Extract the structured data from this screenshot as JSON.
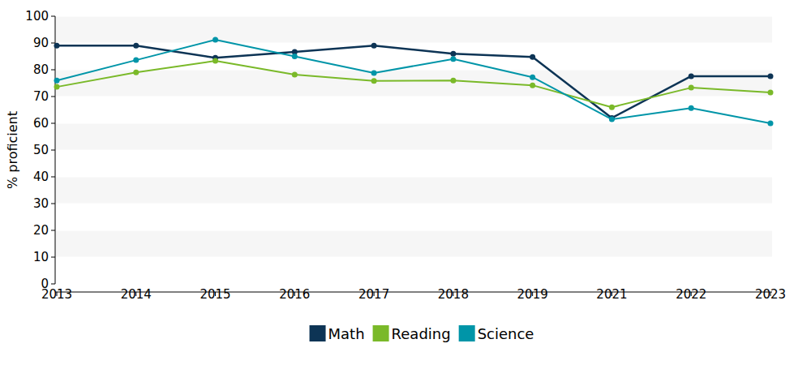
{
  "chart_data": {
    "type": "line",
    "y_label": "% proficient",
    "categories": [
      "2013",
      "2014",
      "2015",
      "2016",
      "2017",
      "2018",
      "2019",
      "2021",
      "2022",
      "2023"
    ],
    "series": [
      {
        "name": "Math",
        "color": "#0d3455",
        "values": [
          89,
          89,
          84.5,
          86.7,
          89,
          86,
          84.8,
          62,
          77.6,
          77.6
        ]
      },
      {
        "name": "Reading",
        "color": "#7ab929",
        "values": [
          73.6,
          79,
          83.3,
          78.2,
          75.8,
          76,
          74.2,
          66,
          73.3,
          71.5
        ]
      },
      {
        "name": "Science",
        "color": "#0095a8",
        "values": [
          76,
          83.6,
          91.2,
          85,
          78.8,
          84,
          77.2,
          61.5,
          65.7,
          60
        ]
      }
    ],
    "ylim": [
      0,
      100
    ],
    "yticks": [
      0,
      10,
      20,
      30,
      40,
      50,
      60,
      70,
      80,
      90,
      100
    ],
    "grid": true,
    "legend": "bottom",
    "marker": "circle"
  }
}
